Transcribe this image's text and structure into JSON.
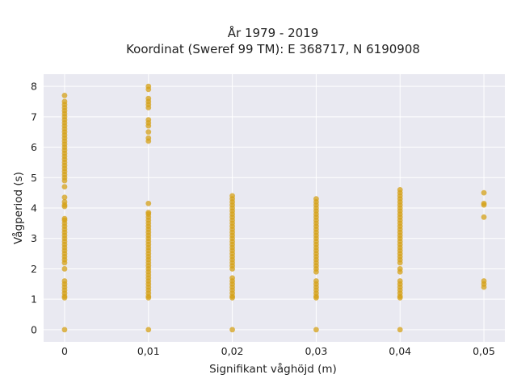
{
  "chart_data": {
    "type": "scatter",
    "title_line1": "År 1979 - 2019",
    "title_line2": "Koordinat (Sweref 99 TM): E 368717, N 6190908",
    "xlabel": "Signifikant våghöjd (m)",
    "ylabel": "Vågperiod (s)",
    "x_ticks": [
      "0",
      "0,01",
      "0,02",
      "0,03",
      "0,04",
      "0,05"
    ],
    "y_ticks": [
      "0",
      "1",
      "2",
      "3",
      "4",
      "5",
      "6",
      "7",
      "8"
    ],
    "xlim": [
      -0.0025,
      0.0525
    ],
    "ylim": [
      -0.4,
      8.4
    ],
    "grid": true,
    "marker_color": "#d4a017",
    "plot_background": "#e9e9f1",
    "points": [
      {
        "x": 0,
        "y": [
          0,
          1.05,
          1.1,
          1.2,
          1.3,
          1.4,
          1.5,
          1.6,
          2.0,
          2.2,
          2.3,
          2.4,
          2.5,
          2.6,
          2.7,
          2.8,
          2.9,
          3.0,
          3.1,
          3.2,
          3.3,
          3.4,
          3.5,
          3.6,
          3.65,
          4.05,
          4.1,
          4.2,
          4.35,
          4.7,
          4.9,
          5.0,
          5.1,
          5.2,
          5.3,
          5.4,
          5.5,
          5.6,
          5.7,
          5.8,
          5.9,
          6.0,
          6.1,
          6.2,
          6.3,
          6.4,
          6.5,
          6.6,
          6.7,
          6.8,
          6.9,
          7.0,
          7.1,
          7.2,
          7.3,
          7.4,
          7.5,
          7.7
        ]
      },
      {
        "x": 0.01,
        "y": [
          0,
          1.05,
          1.1,
          1.2,
          1.3,
          1.4,
          1.5,
          1.6,
          1.7,
          1.8,
          1.9,
          2.0,
          2.1,
          2.2,
          2.3,
          2.4,
          2.5,
          2.6,
          2.7,
          2.8,
          2.9,
          3.0,
          3.1,
          3.2,
          3.3,
          3.4,
          3.5,
          3.6,
          3.7,
          3.8,
          3.85,
          4.15,
          6.2,
          6.3,
          6.5,
          6.7,
          6.8,
          6.9,
          7.3,
          7.4,
          7.5,
          7.6,
          7.9,
          8.0
        ]
      },
      {
        "x": 0.02,
        "y": [
          0,
          1.05,
          1.1,
          1.2,
          1.3,
          1.4,
          1.5,
          1.6,
          1.7,
          2.0,
          2.1,
          2.2,
          2.3,
          2.4,
          2.5,
          2.6,
          2.7,
          2.8,
          2.9,
          3.0,
          3.1,
          3.2,
          3.3,
          3.4,
          3.5,
          3.6,
          3.7,
          3.8,
          3.9,
          4.0,
          4.1,
          4.2,
          4.3,
          4.4
        ]
      },
      {
        "x": 0.03,
        "y": [
          0,
          1.05,
          1.1,
          1.2,
          1.3,
          1.4,
          1.5,
          1.6,
          1.9,
          2.0,
          2.1,
          2.2,
          2.3,
          2.4,
          2.5,
          2.6,
          2.7,
          2.8,
          2.9,
          3.0,
          3.1,
          3.2,
          3.3,
          3.4,
          3.5,
          3.6,
          3.7,
          3.8,
          3.9,
          4.0,
          4.1,
          4.2,
          4.3
        ]
      },
      {
        "x": 0.04,
        "y": [
          0,
          1.05,
          1.1,
          1.2,
          1.3,
          1.4,
          1.5,
          1.6,
          1.9,
          2.0,
          2.2,
          2.3,
          2.4,
          2.5,
          2.6,
          2.7,
          2.8,
          2.9,
          3.0,
          3.1,
          3.2,
          3.3,
          3.4,
          3.5,
          3.6,
          3.7,
          3.8,
          3.9,
          4.0,
          4.1,
          4.2,
          4.3,
          4.4,
          4.5,
          4.6
        ]
      },
      {
        "x": 0.05,
        "y": [
          1.4,
          1.5,
          1.6,
          3.7,
          4.1,
          4.15,
          4.5
        ]
      }
    ]
  }
}
